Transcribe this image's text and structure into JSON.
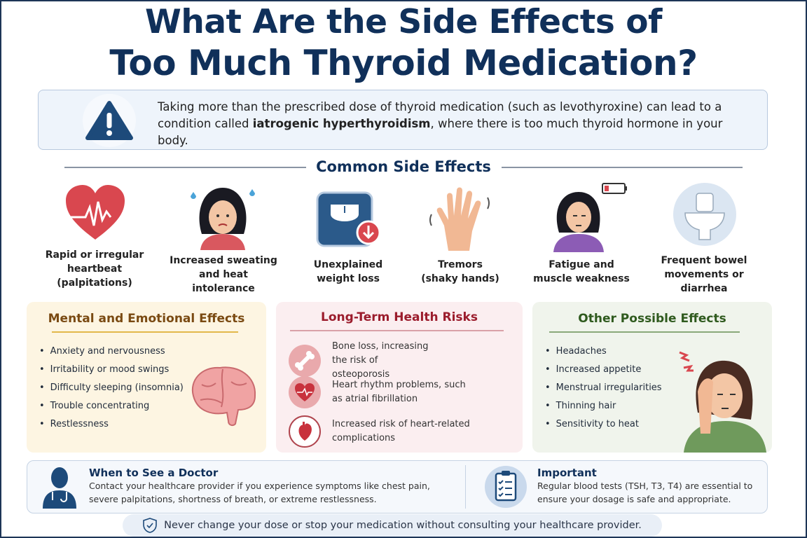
{
  "title": {
    "line1": "What Are the Side Effects of",
    "line2": "Too Much Thyroid Medication?"
  },
  "intro": {
    "before": "Taking more than the prescribed dose of thyroid medication (such as levothyroxine) can lead to a condition called ",
    "bold": "iatrogenic hyperthyroidism",
    "after": ", where there is too much thyroid hormone in your body."
  },
  "common": {
    "heading": "Common Side Effects",
    "items": [
      {
        "label": "Rapid or irregular heartbeat (palpitations)",
        "icon": "heart-pulse-icon"
      },
      {
        "label": "Increased sweating and heat intolerance",
        "icon": "sweating-woman-icon"
      },
      {
        "label": "Unexplained weight loss",
        "icon": "scale-down-icon"
      },
      {
        "label": "Tremors (shaky hands)",
        "icon": "shaky-hand-icon"
      },
      {
        "label": "Fatigue and muscle weakness",
        "icon": "tired-woman-low-battery-icon"
      },
      {
        "label": "Frequent bowel movements or diarrhea",
        "icon": "toilet-icon"
      }
    ]
  },
  "mental": {
    "heading": "Mental and Emotional Effects",
    "items": [
      "Anxiety and nervousness",
      "Irritability or mood swings",
      "Difficulty sleeping (insomnia)",
      "Trouble concentrating",
      "Restlessness"
    ]
  },
  "longterm": {
    "heading": "Long-Term Health Risks",
    "items": [
      "Bone loss, increasing the risk of osteoporosis",
      "Heart rhythm problems, such as atrial fibrillation",
      "Increased risk of heart-related complications"
    ]
  },
  "other": {
    "heading": "Other Possible Effects",
    "items": [
      "Headaches",
      "Increased appetite",
      "Menstrual irregularities",
      "Thinning hair",
      "Sensitivity to heat"
    ]
  },
  "doctor": {
    "heading": "When to See a Doctor",
    "text": "Contact your healthcare provider if you experience symptoms like chest pain, severe palpitations, shortness of breath, or extreme restlessness."
  },
  "important": {
    "heading": "Important",
    "text": "Regular blood tests (TSH, T3, T4) are essential to ensure your dosage is safe and appropriate."
  },
  "footer": {
    "text": "Never change your dose or stop your medication without consulting your healthcare provider."
  },
  "colors": {
    "navy": "#10305a",
    "red": "#d9474f",
    "mental": "#7a4a12",
    "longterm": "#9b1c2c",
    "other": "#2f5a1e"
  }
}
